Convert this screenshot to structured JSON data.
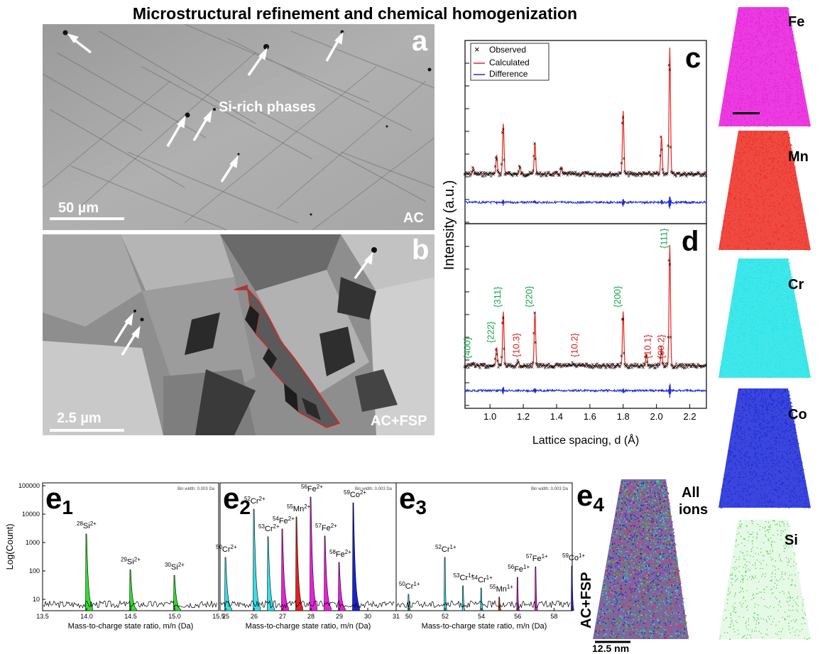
{
  "figure_title": "Microstructural refinement and chemical homogenization",
  "panel_a": {
    "letter": "a",
    "annotation": "Si-rich phases",
    "scale": "50 µm",
    "condition": "AC"
  },
  "panel_b": {
    "letter": "b",
    "scale": "2.5 µm",
    "condition": "AC+FSP"
  },
  "xrd": {
    "ylabel": "Intensity (a.u.)",
    "xlabel": "Lattice spacing, d (Å)",
    "xticks": [
      "1.0",
      "1.2",
      "1.4",
      "1.6",
      "1.8",
      "2.0",
      "2.2"
    ],
    "legend": [
      "Observed",
      "Calculated",
      "Difference"
    ],
    "colors": {
      "observed": "#000000",
      "calculated": "#e8261d",
      "difference": "#1f2bd6",
      "fcc": "#1aa34a",
      "hcp": "#d6201f"
    },
    "panel_c_letter": "c",
    "panel_d_letter": "d",
    "fcc_labels": [
      "{400}",
      "{222}",
      "{311}",
      "{220}",
      "{200}",
      "{111}"
    ],
    "hcp_labels": [
      "{10.3}",
      "{10.2}",
      "{10.1}",
      "{00.2}"
    ]
  },
  "chart_data": [
    {
      "type": "line",
      "panel": "c",
      "xlim": [
        0.85,
        2.3
      ],
      "peaks_d": [
        0.9,
        1.04,
        1.08,
        1.18,
        1.27,
        1.43,
        1.8,
        2.03,
        2.08
      ],
      "peaks_rel_intensity": [
        0.05,
        0.15,
        0.4,
        0.06,
        0.25,
        0.05,
        0.5,
        0.3,
        1.0
      ]
    },
    {
      "type": "line",
      "panel": "d",
      "xlim": [
        0.85,
        2.3
      ],
      "peaks_d": [
        0.9,
        1.04,
        1.08,
        1.17,
        1.27,
        1.5,
        1.8,
        1.94,
        2.03,
        2.08
      ],
      "peaks_rel_intensity": [
        0.03,
        0.15,
        0.45,
        0.04,
        0.45,
        0.02,
        0.45,
        0.1,
        0.15,
        1.0
      ]
    },
    {
      "type": "bar",
      "panel": "e1",
      "ylabel": "Log(Count)",
      "yticks": [
        "10",
        "100",
        "1000",
        "10000",
        "100000"
      ],
      "xticks": [
        "13.5",
        "14.0",
        "14.5",
        "15.0",
        "15.5"
      ],
      "xlabel": "Mass-to-charge state ratio, m/n (Da)",
      "bin_note": "Bin width: 0.003 Da",
      "peaks": [
        {
          "mz": 14.0,
          "count": 2000,
          "label_mass": "28",
          "label_ion": "Si",
          "label_charge": "2+"
        },
        {
          "mz": 14.5,
          "count": 110,
          "label_mass": "29",
          "label_ion": "Si",
          "label_charge": "2+"
        },
        {
          "mz": 15.0,
          "count": 70,
          "label_mass": "30",
          "label_ion": "Si",
          "label_charge": "2+"
        }
      ]
    },
    {
      "type": "bar",
      "panel": "e2",
      "xticks": [
        "25",
        "26",
        "27",
        "28",
        "29",
        "30",
        "31"
      ],
      "xlabel": "Mass-to-charge state ratio, m/n (Da)",
      "bin_note": "Bin width: 0.003 Da",
      "peaks": [
        {
          "mz": 25.0,
          "count": 300,
          "label_mass": "50",
          "label_ion": "Cr",
          "label_charge": "2+"
        },
        {
          "mz": 26.0,
          "count": 15000,
          "label_mass": "52",
          "label_ion": "Cr",
          "label_charge": "2+"
        },
        {
          "mz": 26.5,
          "count": 1600,
          "label_mass": "53",
          "label_ion": "Cr",
          "label_charge": "2+"
        },
        {
          "mz": 27.0,
          "count": 3000,
          "label_mass": "54",
          "label_ion": "Fe",
          "label_charge": "2+"
        },
        {
          "mz": 27.5,
          "count": 8000,
          "label_mass": "55",
          "label_ion": "Mn",
          "label_charge": "2+"
        },
        {
          "mz": 28.0,
          "count": 40000,
          "label_mass": "56",
          "label_ion": "Fe",
          "label_charge": "2+"
        },
        {
          "mz": 28.5,
          "count": 1700,
          "label_mass": "57",
          "label_ion": "Fe",
          "label_charge": "2+"
        },
        {
          "mz": 29.0,
          "count": 200,
          "label_mass": "58",
          "label_ion": "Fe",
          "label_charge": "2+"
        },
        {
          "mz": 29.5,
          "count": 25000,
          "label_mass": "59",
          "label_ion": "Co",
          "label_charge": "2+"
        }
      ]
    },
    {
      "type": "bar",
      "panel": "e3",
      "xticks": [
        "50",
        "52",
        "54",
        "56",
        "58"
      ],
      "xlabel": "Mass-to-charge state ratio, m/n (Da)",
      "bin_note": "Bin width: 0.003 Da",
      "peaks": [
        {
          "mz": 50.0,
          "count": 15,
          "label_mass": "50",
          "label_ion": "Cr",
          "label_charge": "1+"
        },
        {
          "mz": 52.0,
          "count": 300,
          "label_mass": "52",
          "label_ion": "Cr",
          "label_charge": "1+"
        },
        {
          "mz": 53.0,
          "count": 30,
          "label_mass": "53",
          "label_ion": "Cr",
          "label_charge": "1+"
        },
        {
          "mz": 54.0,
          "count": 25,
          "label_mass": "54",
          "label_ion": "Cr",
          "label_charge": "1+"
        },
        {
          "mz": 55.0,
          "count": 12,
          "label_mass": "55",
          "label_ion": "Mn",
          "label_charge": "1+"
        },
        {
          "mz": 56.0,
          "count": 60,
          "label_mass": "56",
          "label_ion": "Fe",
          "label_charge": "1+"
        },
        {
          "mz": 57.0,
          "count": 140,
          "label_mass": "57",
          "label_ion": "Fe",
          "label_charge": "1+"
        },
        {
          "mz": 59.0,
          "count": 150,
          "label_mass": "59",
          "label_ion": "Co",
          "label_charge": "1+"
        }
      ]
    }
  ],
  "e_panels": {
    "e1": {
      "main": "e",
      "sub": "1"
    },
    "e2": {
      "main": "e",
      "sub": "2"
    },
    "e3": {
      "main": "e",
      "sub": "3"
    },
    "e4": {
      "main": "e",
      "sub": "4"
    }
  },
  "apt": {
    "all_line1": "All",
    "all_line2": "ions",
    "condition": "AC+FSP",
    "scale": "12.5 nm",
    "elements": [
      {
        "name": "Fe",
        "color": "#e61adb"
      },
      {
        "name": "Mn",
        "color": "#ec2a20"
      },
      {
        "name": "Cr",
        "color": "#1ee3e6"
      },
      {
        "name": "Co",
        "color": "#1726d6"
      },
      {
        "name": "Si",
        "color": "#33cc33"
      }
    ]
  },
  "spectrum_colors": {
    "Si": "#2ee02e",
    "Cr": "#32e0e6",
    "Fe": "#ea1ee0",
    "Mn": "#e32020",
    "Co": "#1a22d0"
  }
}
